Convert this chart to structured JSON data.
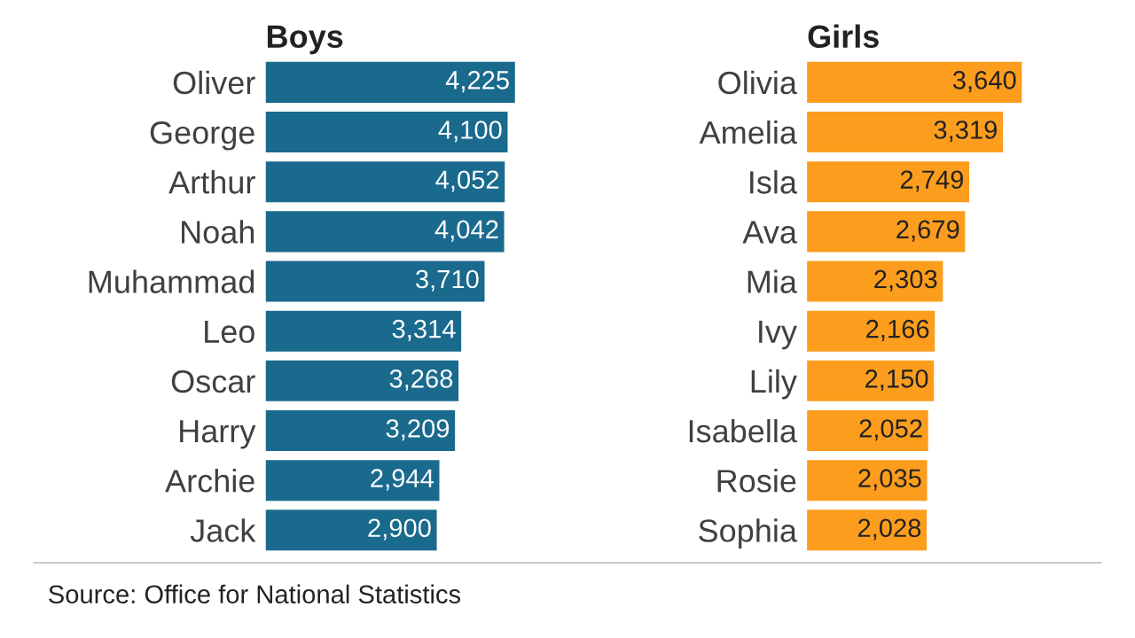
{
  "chart_data": [
    {
      "type": "bar",
      "orientation": "horizontal",
      "title": "Boys",
      "categories": [
        "Oliver",
        "George",
        "Arthur",
        "Noah",
        "Muhammad",
        "Leo",
        "Oscar",
        "Harry",
        "Archie",
        "Jack"
      ],
      "values": [
        4225,
        4100,
        4052,
        4042,
        3710,
        3314,
        3268,
        3209,
        2944,
        2900
      ],
      "color": "#1a6a8e",
      "value_labels": [
        "4,225",
        "4,100",
        "4,052",
        "4,042",
        "3,710",
        "3,314",
        "3,268",
        "3,209",
        "2,944",
        "2,900"
      ],
      "tick_labels": "y",
      "grid": false,
      "legend": false,
      "annotations": [
        "Source: Office for National Statistics"
      ]
    },
    {
      "type": "bar",
      "orientation": "horizontal",
      "title": "Girls",
      "categories": [
        "Olivia",
        "Amelia",
        "Isla",
        "Ava",
        "Mia",
        "Ivy",
        "Lily",
        "Isabella",
        "Rosie",
        "Sophia"
      ],
      "values": [
        3640,
        3319,
        2749,
        2679,
        2303,
        2166,
        2150,
        2052,
        2035,
        2028
      ],
      "color": "#fd9d1d",
      "value_labels": [
        "3,640",
        "3,319",
        "2,749",
        "2,679",
        "2,303",
        "2,166",
        "2,150",
        "2,052",
        "2,035",
        "2,028"
      ],
      "tick_labels": "y",
      "grid": false,
      "legend": false
    }
  ]
}
